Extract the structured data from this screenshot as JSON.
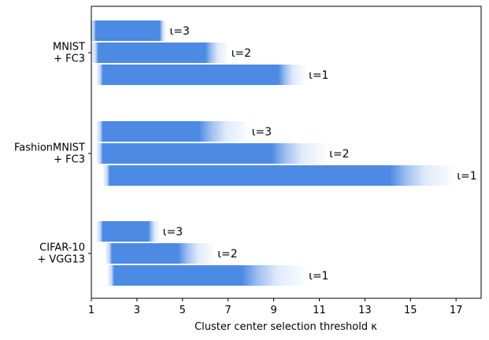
{
  "chart_data": {
    "type": "bar",
    "orientation": "horizontal",
    "xlabel": "Cluster center selection threshold κ",
    "ylabel": "",
    "xlim": [
      1,
      18.1
    ],
    "xticks": [
      1,
      3,
      5,
      7,
      9,
      11,
      13,
      15,
      17
    ],
    "bar_color": "#4c8ae3",
    "groups": [
      {
        "label_lines": [
          "MNIST",
          "+ FC3"
        ],
        "bars": [
          {
            "label": "ι=3",
            "start": 1.2,
            "end": 4.0,
            "fade_end": 4.3
          },
          {
            "label": "ι=2",
            "start": 1.3,
            "end": 6.0,
            "fade_end": 7.0
          },
          {
            "label": "ι=1",
            "start": 1.5,
            "end": 9.2,
            "fade_end": 10.4
          }
        ]
      },
      {
        "label_lines": [
          "FashionMNIST",
          "+ FC3"
        ],
        "bars": [
          {
            "label": "ι=3",
            "start": 1.5,
            "end": 5.7,
            "fade_end": 7.9
          },
          {
            "label": "ι=2",
            "start": 1.5,
            "end": 8.9,
            "fade_end": 11.3
          },
          {
            "label": "ι=1",
            "start": 1.8,
            "end": 14.1,
            "fade_end": 16.9
          }
        ]
      },
      {
        "label_lines": [
          "CIFAR-10",
          "+ VGG13"
        ],
        "bars": [
          {
            "label": "ι=3",
            "start": 1.5,
            "end": 3.5,
            "fade_end": 4.0
          },
          {
            "label": "ι=2",
            "start": 1.9,
            "end": 4.8,
            "fade_end": 6.4
          },
          {
            "label": "ι=1",
            "start": 2.0,
            "end": 7.6,
            "fade_end": 10.4
          }
        ]
      }
    ]
  }
}
